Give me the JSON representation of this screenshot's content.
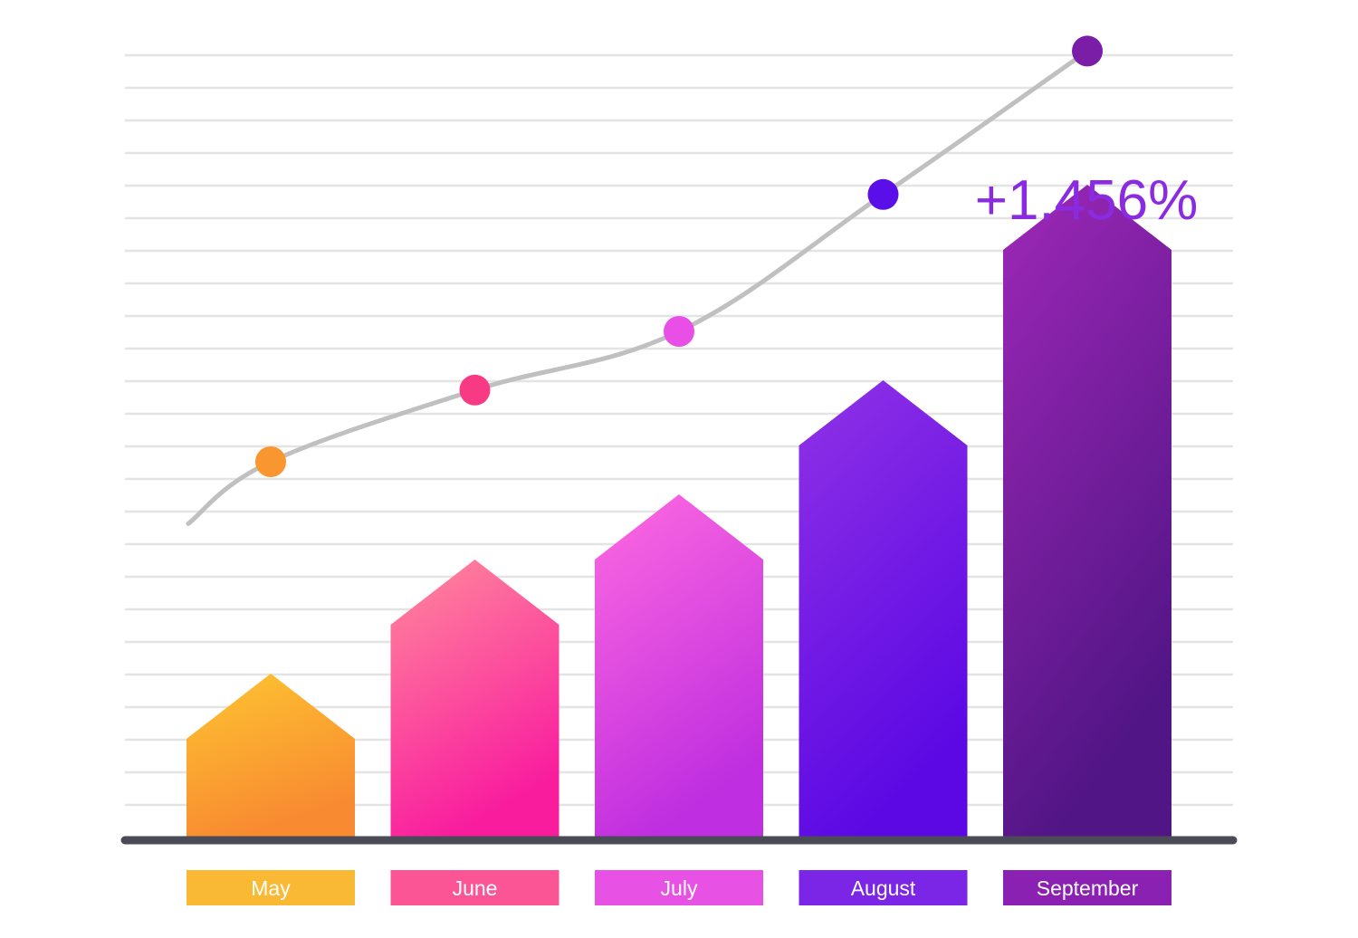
{
  "chart_data": {
    "type": "bar",
    "categories": [
      "May",
      "June",
      "July",
      "August",
      "September"
    ],
    "values": [
      3,
      6.5,
      8.5,
      12,
      18
    ],
    "trend_line": [
      11.5,
      13.7,
      15.5,
      19.7,
      24.1
    ],
    "annotation": "+1.456%",
    "ylim": [
      0,
      24
    ],
    "grid": true,
    "legend": "none",
    "title": "",
    "xlabel": "",
    "ylabel": "",
    "colors": {
      "bar_top": [
        "#fdc531",
        "#ff8a9c",
        "#ff6ae0",
        "#9032e6",
        "#9e28b8"
      ],
      "bar_bottom": [
        "#f88a31",
        "#f91d9e",
        "#bf2ee0",
        "#5b08e4",
        "#511585"
      ],
      "label_bg": [
        "#f9b934",
        "#fb5596",
        "#e752e5",
        "#7b25e6",
        "#8a21b2"
      ],
      "dots": [
        "#f9962f",
        "#f83a84",
        "#e94ee6",
        "#5a0ee8",
        "#7a1ea8"
      ],
      "trend": "#c0c0c0",
      "grid": "#e4e4e4",
      "baseline": "#4a4b57",
      "annotation": "#8a2be2"
    }
  }
}
